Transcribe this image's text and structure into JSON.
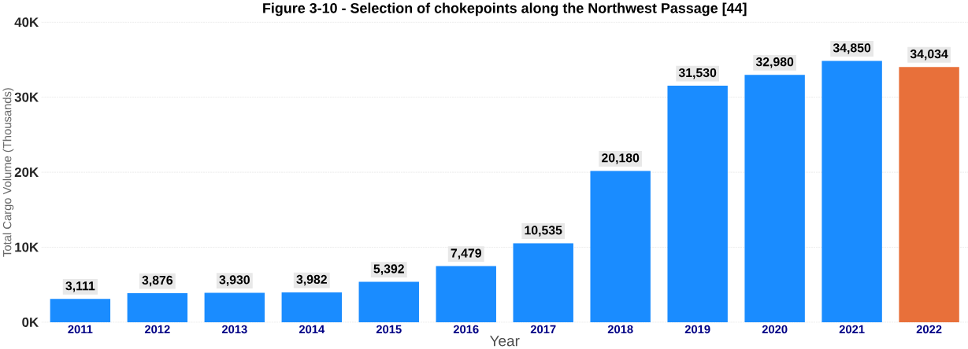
{
  "chart_data": {
    "type": "bar",
    "title": "Figure 3-10 - Selection of chokepoints along the Northwest Passage [44]",
    "categories": [
      "2011",
      "2012",
      "2013",
      "2014",
      "2015",
      "2016",
      "2017",
      "2018",
      "2019",
      "2020",
      "2021",
      "2022"
    ],
    "values": [
      3111,
      3876,
      3930,
      3982,
      5392,
      7479,
      10535,
      20180,
      31530,
      32980,
      34850,
      34034
    ],
    "value_labels": [
      "3,111",
      "3,876",
      "3,930",
      "3,982",
      "5,392",
      "7,479",
      "10,535",
      "20,180",
      "31,530",
      "32,980",
      "34,850",
      "34,034"
    ],
    "colors": [
      "#1a8cff",
      "#1a8cff",
      "#1a8cff",
      "#1a8cff",
      "#1a8cff",
      "#1a8cff",
      "#1a8cff",
      "#1a8cff",
      "#1a8cff",
      "#1a8cff",
      "#1a8cff",
      "#e8703a"
    ],
    "xlabel": "Year",
    "ylabel": "Total Cargo Volume (Thousands)",
    "ylim": [
      0,
      40000
    ],
    "yticks": [
      {
        "value": 0,
        "label": "0K"
      },
      {
        "value": 10000,
        "label": "10K"
      },
      {
        "value": 20000,
        "label": "20K"
      },
      {
        "value": 30000,
        "label": "30K"
      },
      {
        "value": 40000,
        "label": "40K"
      }
    ],
    "grid": "y"
  }
}
